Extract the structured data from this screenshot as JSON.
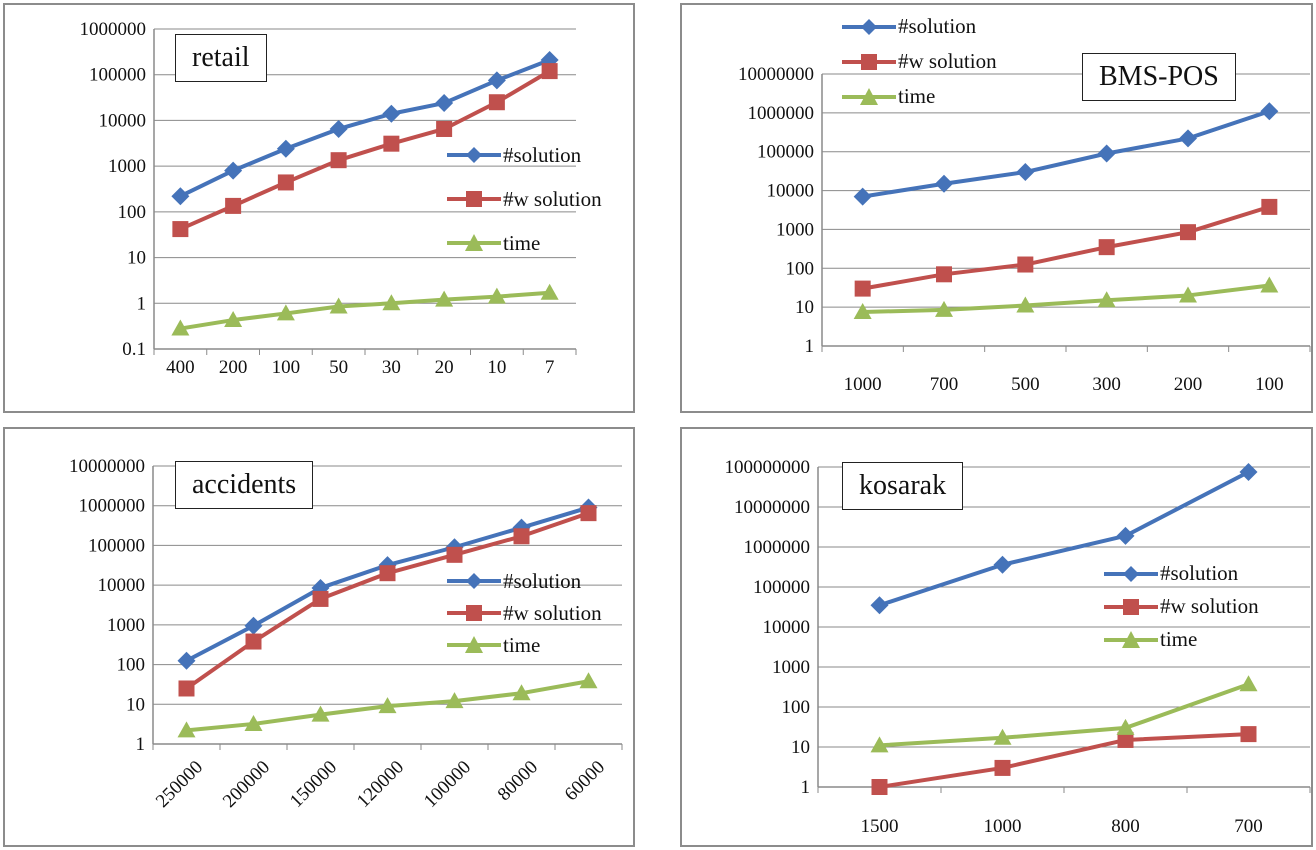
{
  "colors": {
    "solution": "#4573B9",
    "wsolution": "#C0504D",
    "time": "#9BBB59"
  },
  "chart_data": [
    {
      "type": "line",
      "title": "retail",
      "yscale": "log",
      "ylim": [
        0.1,
        1000000
      ],
      "grid": "horizontal",
      "legend": "right",
      "categories": [
        "400",
        "200",
        "100",
        "50",
        "30",
        "20",
        "10",
        "7"
      ],
      "y_ticks": [
        "0.1",
        "1",
        "10",
        "100",
        "1000",
        "10000",
        "100000",
        "1000000"
      ],
      "series": [
        {
          "name": "#solution",
          "values": [
            220,
            800,
            2400,
            6500,
            14000,
            24000,
            75000,
            210000
          ]
        },
        {
          "name": "#w solution",
          "values": [
            42,
            135,
            440,
            1350,
            3100,
            6500,
            25000,
            120000
          ]
        },
        {
          "name": "time",
          "values": [
            0.28,
            0.43,
            0.6,
            0.85,
            1.0,
            1.2,
            1.4,
            1.7
          ]
        }
      ]
    },
    {
      "type": "line",
      "title": "BMS-POS",
      "yscale": "log",
      "ylim": [
        1,
        10000000
      ],
      "grid": "horizontal",
      "legend": "top-left",
      "categories": [
        "1000",
        "700",
        "500",
        "300",
        "200",
        "100"
      ],
      "y_ticks": [
        "1",
        "10",
        "100",
        "1000",
        "10000",
        "100000",
        "1000000",
        "10000000"
      ],
      "series": [
        {
          "name": "#solution",
          "values": [
            7000,
            15000,
            30000,
            90000,
            220000,
            1100000
          ]
        },
        {
          "name": "#w solution",
          "values": [
            30,
            70,
            125,
            350,
            850,
            3800
          ]
        },
        {
          "name": "time",
          "values": [
            7.5,
            8.5,
            11,
            15,
            20,
            36
          ]
        }
      ]
    },
    {
      "type": "line",
      "title": "accidents",
      "yscale": "log",
      "ylim": [
        1,
        10000000
      ],
      "grid": "horizontal",
      "legend": "right",
      "categories": [
        "250000",
        "200000",
        "150000",
        "120000",
        "100000",
        "80000",
        "60000"
      ],
      "y_ticks": [
        "1",
        "10",
        "100",
        "1000",
        "10000",
        "100000",
        "1000000",
        "10000000"
      ],
      "series": [
        {
          "name": "#solution",
          "values": [
            125,
            950,
            8500,
            32000,
            90000,
            280000,
            900000
          ]
        },
        {
          "name": "#w solution",
          "values": [
            25,
            380,
            4500,
            20000,
            58000,
            170000,
            650000
          ]
        },
        {
          "name": "time",
          "values": [
            2.2,
            3.2,
            5.5,
            9,
            12,
            19,
            38
          ]
        }
      ]
    },
    {
      "type": "line",
      "title": "kosarak",
      "yscale": "log",
      "ylim": [
        1,
        100000000
      ],
      "grid": "horizontal",
      "legend": "right",
      "categories": [
        "1500",
        "1000",
        "800",
        "700"
      ],
      "y_ticks": [
        "1",
        "10",
        "100",
        "1000",
        "10000",
        "100000",
        "1000000",
        "10000000",
        "100000000"
      ],
      "series": [
        {
          "name": "#solution",
          "values": [
            35000,
            360000,
            1900000,
            75000000
          ]
        },
        {
          "name": "#w solution",
          "values": [
            1,
            3,
            15,
            21
          ]
        },
        {
          "name": "time",
          "values": [
            11,
            17,
            30,
            370
          ]
        }
      ]
    }
  ]
}
